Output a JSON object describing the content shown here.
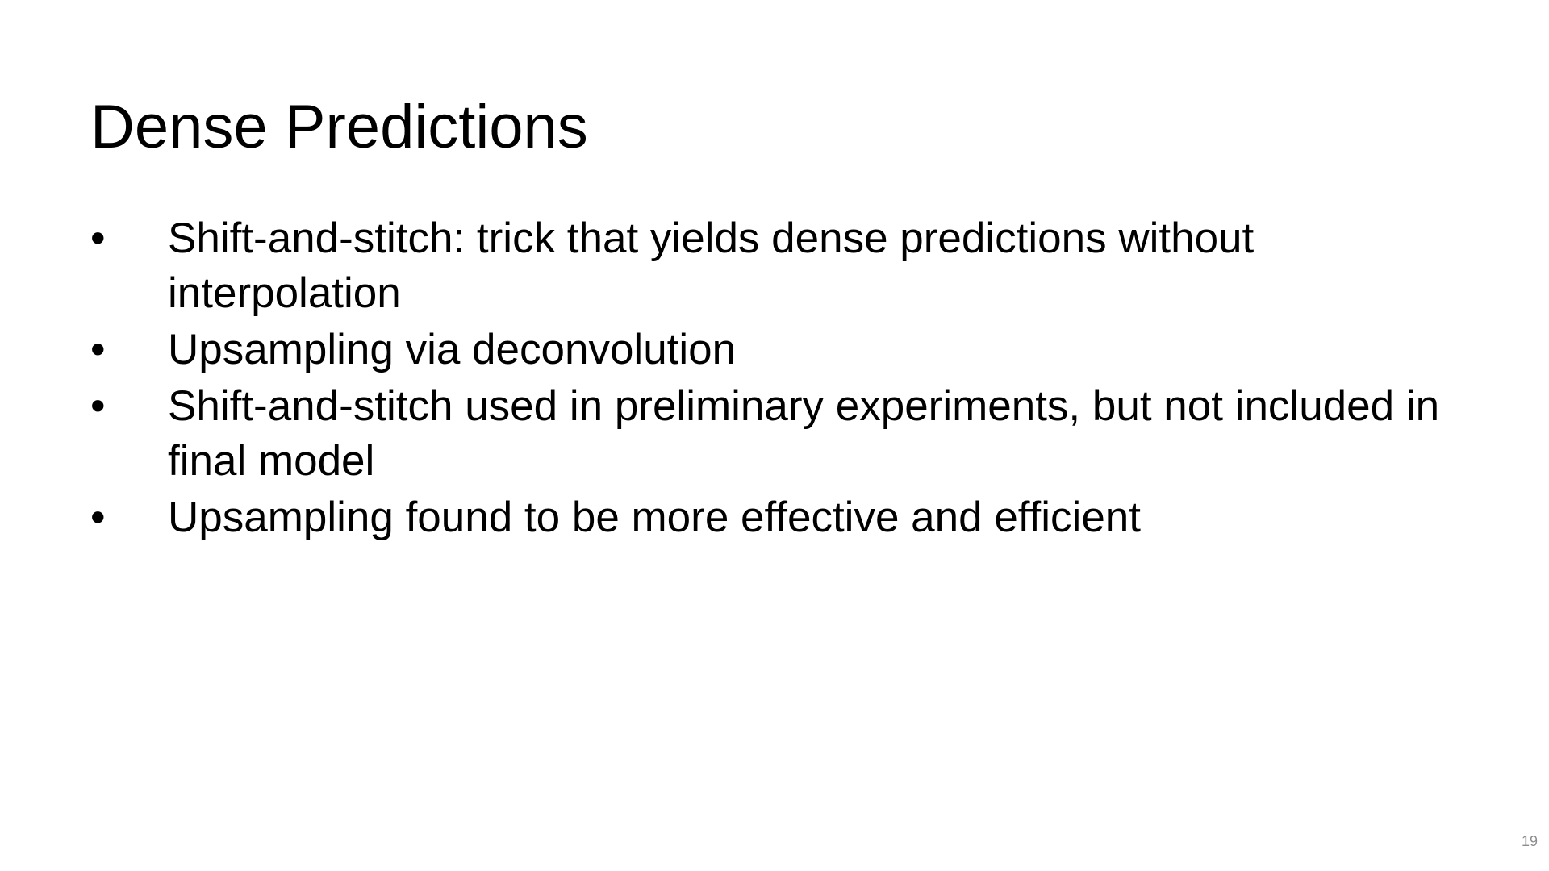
{
  "slide": {
    "title": "Dense Predictions",
    "bullets": [
      {
        "marker": "•",
        "text": "Shift-and-stitch: trick that yields dense predictions without interpolation"
      },
      {
        "marker": "•",
        "text": "Upsampling via deconvolution"
      },
      {
        "marker": "•",
        "text": "Shift-and-stitch used in preliminary experiments, but not included in final model"
      },
      {
        "marker": "•",
        "text": "Upsampling found to be more effective and efficient"
      }
    ],
    "page_number": "19"
  }
}
